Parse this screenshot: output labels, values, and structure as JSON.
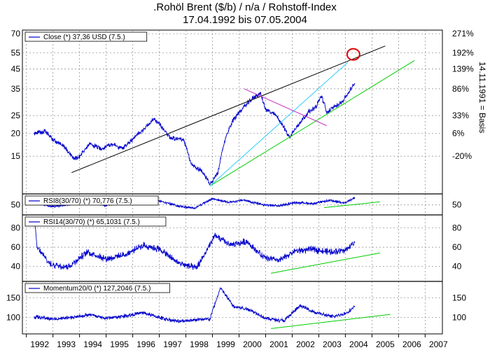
{
  "title": {
    "line1": ".Rohöl Brent ($/b) / n/a / Rohstoff-Index",
    "line2": "17.04.1992 bis 07.05.2004"
  },
  "side_label": "14.11.1991 = Basis",
  "colors": {
    "series": "#0000cc",
    "trend_black": "#000000",
    "trend_green": "#00cc00",
    "trend_cyan": "#33ccff",
    "trend_magenta": "#cc33cc",
    "marker_circle": "#dd0000",
    "grid": "#888888"
  },
  "chart_data": [
    {
      "type": "line",
      "name": "main",
      "legend": "Close (*) 37,36 USD (7.5.)",
      "y_scale": "log",
      "ylim": [
        9.5,
        72
      ],
      "y_ticks_left": [
        15,
        20,
        25,
        35,
        45,
        55,
        70
      ],
      "y_ticks_right": [
        {
          "label": "271%",
          "value": 70
        },
        {
          "label": "192%",
          "value": 55
        },
        {
          "label": "139%",
          "value": 45
        },
        {
          "label": "86%",
          "value": 35
        },
        {
          "label": "33%",
          "value": 25
        },
        {
          "label": "6%",
          "value": 20
        },
        {
          "label": "-20%",
          "value": 15
        }
      ],
      "x": [
        1992.3,
        1992.7,
        1993.0,
        1993.4,
        1993.8,
        1994.0,
        1994.4,
        1994.8,
        1995.2,
        1995.6,
        1996.0,
        1996.4,
        1996.8,
        1997.0,
        1997.4,
        1997.9,
        1998.2,
        1998.6,
        1998.9,
        1999.2,
        1999.5,
        1999.8,
        2000.2,
        2000.5,
        2000.8,
        2001.0,
        2001.4,
        2001.9,
        2002.2,
        2002.6,
        2002.9,
        2003.1,
        2003.3,
        2003.6,
        2003.9,
        2004.1,
        2004.35
      ],
      "values": [
        20,
        20.5,
        18.5,
        17,
        14.5,
        15,
        17.5,
        16.5,
        17.5,
        16.5,
        18.5,
        21,
        24,
        22.5,
        19,
        18.5,
        13.5,
        12.5,
        10.5,
        12,
        19,
        24,
        28,
        31,
        33,
        27,
        25,
        19,
        22,
        26,
        28,
        32,
        26,
        28,
        30,
        33,
        37.36
      ],
      "trendlines": [
        {
          "color": "black",
          "x": [
            1993.7,
            2005.5
          ],
          "y": [
            12.2,
            60
          ]
        },
        {
          "color": "green",
          "x": [
            1998.9,
            2006.6
          ],
          "y": [
            10.3,
            50
          ]
        },
        {
          "color": "cyan",
          "x": [
            1998.9,
            2004.1
          ],
          "y": [
            10.3,
            49
          ]
        },
        {
          "color": "magenta",
          "x": [
            2000.2,
            2003.3
          ],
          "y": [
            35,
            22
          ]
        }
      ],
      "marker": {
        "x": 2004.3,
        "y": 54
      }
    },
    {
      "type": "line",
      "name": "rsi8",
      "legend": "RSI8(30/70) (*) 70,776 (7.5.)",
      "ylim": [
        25,
        78
      ],
      "y_ticks_left": [
        50
      ],
      "y_ticks_right": [
        50
      ],
      "x": [
        1992.3,
        1993.0,
        1993.7,
        1994.4,
        1995.0,
        1995.7,
        1996.3,
        1997.0,
        1997.7,
        1998.3,
        1999.0,
        1999.6,
        2000.2,
        2000.9,
        2001.5,
        2002.1,
        2002.8,
        2003.4,
        2004.0,
        2004.35
      ],
      "values": [
        58,
        45,
        52,
        57,
        48,
        60,
        54,
        62,
        47,
        40,
        68,
        58,
        64,
        50,
        47,
        57,
        54,
        63,
        56,
        70.8
      ],
      "trendlines": [
        {
          "color": "green",
          "x": [
            2003.2,
            2005.3
          ],
          "y": [
            42,
            59
          ]
        }
      ]
    },
    {
      "type": "line",
      "name": "rsi14",
      "legend": "RSI14(30/70) (*) 65,1031 (7.5.)",
      "ylim": [
        26,
        92
      ],
      "y_ticks_left": [
        40,
        60,
        80
      ],
      "y_ticks_right": [
        40,
        60,
        80
      ],
      "x": [
        1992.3,
        1992.4,
        1992.9,
        1993.6,
        1994.3,
        1995.0,
        1995.7,
        1996.4,
        1997.0,
        1997.7,
        1998.4,
        1999.1,
        1999.7,
        2000.3,
        2000.9,
        2001.5,
        2002.1,
        2002.8,
        2003.4,
        2004.0,
        2004.35
      ],
      "values": [
        88,
        60,
        42,
        40,
        55,
        48,
        52,
        62,
        58,
        44,
        38,
        72,
        62,
        66,
        50,
        46,
        56,
        58,
        55,
        57,
        65.1
      ],
      "trendlines": [
        {
          "color": "green",
          "x": [
            2001.2,
            2005.3
          ],
          "y": [
            33,
            54
          ]
        }
      ]
    },
    {
      "type": "line",
      "name": "momentum",
      "legend": "Momentum20/0 (*) 127,2046 (7.5.)",
      "ylim": [
        62,
        188
      ],
      "y_ticks_left": [
        100,
        150
      ],
      "y_ticks_right": [
        100,
        150
      ],
      "x": [
        1992.3,
        1993.0,
        1993.7,
        1994.4,
        1995.0,
        1995.7,
        1996.4,
        1997.0,
        1997.7,
        1998.3,
        1998.9,
        1999.3,
        1999.8,
        2000.4,
        2001.0,
        2001.7,
        2002.3,
        2002.9,
        2003.5,
        2004.0,
        2004.35
      ],
      "values": [
        102,
        96,
        100,
        107,
        98,
        104,
        112,
        100,
        90,
        94,
        96,
        175,
        128,
        120,
        98,
        92,
        130,
        112,
        102,
        110,
        127.2
      ],
      "trendlines": [
        {
          "color": "green",
          "x": [
            2001.2,
            2005.7
          ],
          "y": [
            72,
            108
          ]
        }
      ]
    }
  ],
  "x_axis": {
    "labels": [
      "1992",
      "1993",
      "1994",
      "1995",
      "1996",
      "1997",
      "1998",
      "1999",
      "2000",
      "2001",
      "2002",
      "2003",
      "2004",
      "2005",
      "2006",
      "2007"
    ]
  }
}
